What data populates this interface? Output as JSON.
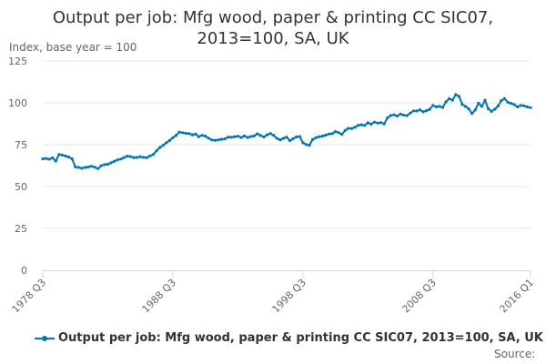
{
  "chart_data": {
    "type": "line",
    "title_lines": [
      "Output per job: Mfg wood, paper & printing CC SIC07,",
      "2013=100, SA, UK"
    ],
    "ylabel": "Index, base year = 100",
    "xlabel": "",
    "ylim": [
      0,
      125
    ],
    "yticks": [
      "0",
      "25",
      "50",
      "75",
      "100",
      "125"
    ],
    "xticks": [
      {
        "label": "1978 Q3",
        "q": 0
      },
      {
        "label": "1988 Q3",
        "q": 40
      },
      {
        "label": "1998 Q3",
        "q": 80
      },
      {
        "label": "2008 Q3",
        "q": 120
      },
      {
        "label": "2016 Q1",
        "q": 150
      }
    ],
    "x_range": [
      "1978 Q3",
      "2016 Q1"
    ],
    "grid": "horizontal",
    "legend_position": "bottom",
    "series": [
      {
        "name": "Output per job: Mfg wood, paper & printing CC SIC07, 2013=100, SA, UK",
        "color": "#0075b0",
        "values": [
          66.5,
          66.8,
          66.3,
          67.2,
          65.2,
          69.2,
          68.8,
          68.2,
          67.6,
          66.6,
          61.8,
          61.4,
          60.9,
          61.4,
          61.7,
          62.1,
          61.5,
          60.7,
          62.5,
          63.1,
          63.3,
          64.2,
          65.1,
          65.9,
          66.4,
          67.3,
          68.2,
          67.9,
          67.3,
          67.4,
          67.8,
          67.4,
          67.3,
          68.3,
          69.2,
          71.4,
          73.3,
          74.6,
          76.2,
          77.5,
          79.2,
          80.6,
          82.5,
          82.2,
          81.8,
          81.6,
          80.9,
          81.3,
          79.8,
          80.6,
          80.1,
          78.9,
          77.8,
          77.6,
          77.9,
          78.2,
          78.5,
          79.5,
          79.4,
          79.8,
          80.1,
          79.3,
          80.2,
          79.3,
          79.9,
          80.2,
          81.5,
          80.5,
          79.6,
          80.9,
          81.7,
          80.6,
          78.8,
          77.9,
          78.8,
          79.5,
          77.4,
          78.6,
          79.6,
          79.9,
          76.2,
          75.1,
          74.7,
          78.1,
          79.2,
          79.8,
          80.1,
          80.7,
          81.4,
          81.6,
          82.8,
          82.2,
          81.2,
          83.5,
          84.8,
          84.7,
          85.4,
          86.6,
          86.9,
          86.5,
          88.1,
          87.3,
          88.5,
          87.9,
          88.2,
          87.4,
          91.1,
          92.4,
          92.8,
          92.1,
          93.3,
          92.6,
          92.4,
          93.8,
          95.2,
          95.1,
          95.8,
          94.6,
          95.3,
          96.1,
          98.5,
          97.6,
          97.9,
          97.3,
          100.6,
          102.5,
          101.6,
          104.9,
          103.9,
          99.1,
          97.8,
          96.4,
          93.6,
          95.8,
          99.8,
          97.9,
          101.5,
          96.5,
          94.9,
          96.2,
          98.1,
          101.3,
          102.5,
          100.4,
          99.7,
          98.9,
          97.6,
          98.5,
          98.2,
          97.6,
          97.1
        ]
      }
    ],
    "source": "Source:"
  }
}
